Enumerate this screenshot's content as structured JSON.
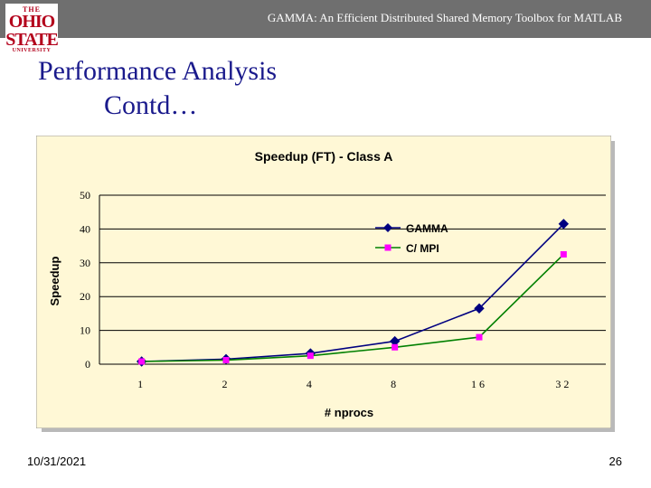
{
  "header": {
    "deck_title": "GAMMA: An Efficient Distributed Shared Memory Toolbox for MATLAB",
    "logo": {
      "line1": "THE",
      "line2": "OHIO",
      "line3": "STATE",
      "line4": "UNIVERSITY"
    }
  },
  "slide": {
    "title_line1": "Performance Analysis",
    "title_line2": "Contd…"
  },
  "footer": {
    "date": "10/31/2021",
    "page": "26"
  },
  "colors": {
    "plot_background": "#fff8d6",
    "gamma_series": "#000080",
    "c_mpi_line": "#008000",
    "c_mpi_marker": "#ff00ff"
  },
  "chart_data": {
    "type": "line",
    "title": "Speedup (FT) - Class A",
    "xlabel": "# nprocs",
    "ylabel": "Speedup",
    "categories": [
      "1",
      "2",
      "4",
      "8",
      "16",
      "32"
    ],
    "ylim": [
      0,
      50
    ],
    "yticks": [
      "0",
      "10",
      "20",
      "30",
      "40",
      "50"
    ],
    "grid": "horizontal",
    "legend_position": "right",
    "series": [
      {
        "name": "GAMMA",
        "values": [
          0.8,
          1.5,
          3.2,
          6.8,
          16.5,
          41.5
        ],
        "marker": "diamond"
      },
      {
        "name": "C/ MPI",
        "values": [
          0.8,
          1.2,
          2.5,
          5.0,
          8.0,
          32.5
        ],
        "marker": "square"
      }
    ]
  }
}
